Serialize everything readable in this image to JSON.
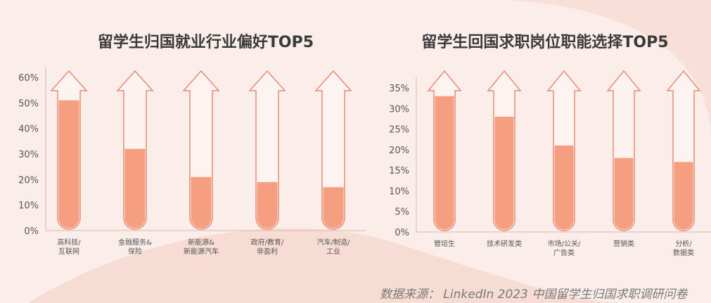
{
  "colors": {
    "fill": "#f59f80",
    "outline": "#e88b73",
    "axis_text": "#555555",
    "title": "#3a3a3a"
  },
  "footer": {
    "source": "数据来源： LinkedIn 2023 中国留学生归国求职调研问卷"
  },
  "chart_data": [
    {
      "type": "bar",
      "title": "留学生归国就业行业偏好TOP5",
      "categories": [
        "高科技/\n互联网",
        "金融服务&\n保险",
        "新能源&\n新能源汽车",
        "政府/教育/\n非盈利",
        "汽车/制造/\n工业"
      ],
      "values": [
        51,
        32,
        21,
        19,
        17
      ],
      "ylim": [
        0,
        60
      ],
      "yticks": [
        "0%",
        "10%",
        "20%",
        "30%",
        "40%",
        "50%",
        "60%"
      ],
      "xlabel": "",
      "ylabel": "",
      "grid": false
    },
    {
      "type": "bar",
      "title": "留学生回国求职岗位职能选择TOP5",
      "categories": [
        "管培生",
        "技术研发类",
        "市场/公关/\n广告类",
        "营销类",
        "分析/\n数据类"
      ],
      "values": [
        33,
        28,
        21,
        18,
        17
      ],
      "ylim": [
        0,
        35
      ],
      "yticks": [
        "0%",
        "5%",
        "10%",
        "15%",
        "20%",
        "25%",
        "30%",
        "35%"
      ],
      "xlabel": "",
      "ylabel": "",
      "grid": false
    }
  ]
}
